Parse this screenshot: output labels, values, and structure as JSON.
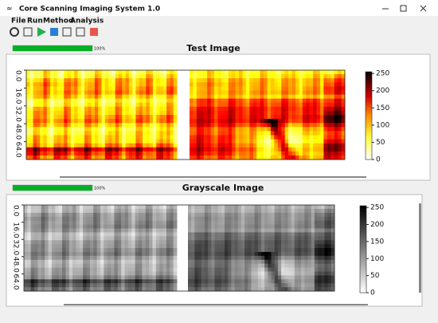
{
  "window": {
    "title": "Core Scanning Imaging System 1.0"
  },
  "menu": [
    "File",
    "Run",
    "Method",
    "Analysis"
  ],
  "panels": [
    {
      "progress": {
        "value": 100,
        "label": "100%",
        "lim": [
          0,
          100
        ]
      },
      "title": "Test Image",
      "colormap": "hot",
      "ylim": [
        0,
        80
      ],
      "yticks": [
        {
          "value": 0,
          "label": "0.0"
        },
        {
          "value": 16,
          "label": "16.0"
        },
        {
          "value": 32,
          "label": "32.0"
        },
        {
          "value": 48,
          "label": "48.0"
        },
        {
          "value": 64,
          "label": "64.0"
        }
      ],
      "colorbar_lim": [
        0,
        255
      ],
      "colorbar_ticks": [
        0,
        50,
        100,
        150,
        200,
        250
      ]
    },
    {
      "progress": {
        "value": 100,
        "label": "100%",
        "lim": [
          0,
          100
        ]
      },
      "title": "Grayscale Image",
      "colormap": "gray",
      "ylim": [
        0,
        80
      ],
      "yticks": [
        {
          "value": 0,
          "label": "0.0"
        },
        {
          "value": 16,
          "label": "16.0"
        },
        {
          "value": 32,
          "label": "32.0"
        },
        {
          "value": 48,
          "label": "48.0"
        },
        {
          "value": 64,
          "label": "64.0"
        }
      ],
      "colorbar_lim": [
        0,
        255
      ],
      "colorbar_ticks": [
        0,
        50,
        100,
        150,
        200,
        250
      ]
    }
  ]
}
